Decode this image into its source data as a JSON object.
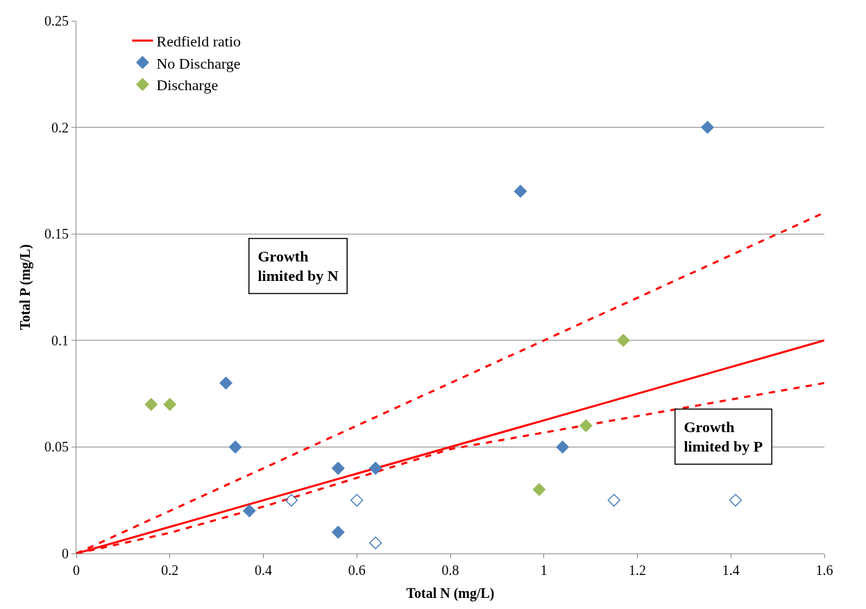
{
  "chart_data": {
    "type": "scatter",
    "xlabel": "Total N (mg/L)",
    "ylabel": "Total P (mg/L)",
    "xlim": [
      0,
      1.6
    ],
    "xticks": [
      0,
      0.2,
      0.4,
      0.6,
      0.8,
      1,
      1.2,
      1.4,
      1.6
    ],
    "ylim": [
      0,
      0.25
    ],
    "yticks": [
      0,
      0.05,
      0.1,
      0.15,
      0.2,
      0.25
    ],
    "grid": "y",
    "legend": "top left",
    "marker": "diamond",
    "annotations": [
      "Growth\nlimited by N",
      "Growth\nlimited by P"
    ],
    "series": [
      {
        "name": "No Discharge",
        "color": "#4f81bd",
        "x": [
          0.32,
          0.34,
          0.37,
          0.56,
          0.56,
          0.64,
          0.95,
          1.04,
          1.35
        ],
        "values": [
          0.08,
          0.05,
          0.02,
          0.04,
          0.01,
          0.04,
          0.17,
          0.05,
          0.2
        ]
      },
      {
        "color": "#4f81bd",
        "marker": "diamond-open",
        "x": [
          0.46,
          0.6,
          0.64,
          1.15,
          1.41
        ],
        "values": [
          0.025,
          0.025,
          0.005,
          0.025,
          0.025
        ]
      },
      {
        "name": "Discharge",
        "color": "#9bbb59",
        "x": [
          0.16,
          0.2,
          0.99,
          1.09,
          1.17
        ],
        "values": [
          0.07,
          0.07,
          0.03,
          0.06,
          0.1
        ]
      },
      {
        "name": "Redfield ratio",
        "type": "line",
        "color": "#ff0000",
        "line_style": "solid",
        "marker": "none",
        "x": [
          0,
          1.6
        ],
        "values": [
          0,
          0.1
        ]
      },
      {
        "type": "line",
        "color": "#ff0000",
        "line_style": "dashed",
        "marker": "none",
        "x": [
          0,
          1.6
        ],
        "values": [
          0,
          0.16
        ]
      },
      {
        "type": "line",
        "color": "#ff0000",
        "line_style": "dashed",
        "marker": "none",
        "x": [
          0,
          0.2,
          0.4,
          0.8,
          1.2,
          1.6
        ],
        "values": [
          0,
          0.0097,
          0.022,
          0.049,
          0.0645,
          0.08
        ]
      }
    ]
  }
}
